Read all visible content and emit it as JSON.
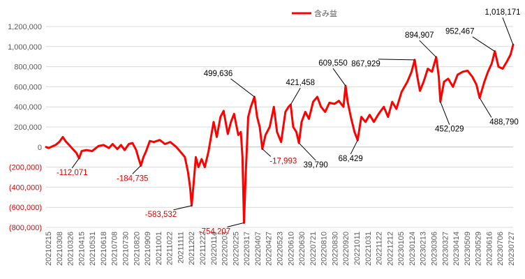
{
  "chart_data": {
    "type": "line",
    "legend": {
      "label": "含み益",
      "position": "top-center"
    },
    "colors": {
      "series": "#ff0000",
      "axis": "#bfbfbf",
      "grid": "#d9d9d9",
      "tick_text": "#595959",
      "negative_text": "#e00000",
      "annotation_text": "#000000",
      "leader": "#000000"
    },
    "y_axis": {
      "min": -800000,
      "max": 1200000,
      "step": 200000,
      "tick_labels": [
        "(800,000)",
        "(600,000)",
        "(400,000)",
        "(200,000)",
        "0",
        "200,000",
        "400,000",
        "600,000",
        "800,000",
        "1,000,000",
        "1,200,000"
      ]
    },
    "x_axis": {
      "start": "2021-02-15",
      "end": "2023-07-27",
      "tick_labels": [
        "20210215",
        "20210308",
        "20210326",
        "20210415",
        "20210531",
        "20210618",
        "20210708",
        "20210730",
        "20210820",
        "20210909",
        "20211001",
        "20211022",
        "20211111",
        "20211202",
        "20211222",
        "20220114",
        "20220203",
        "20220225",
        "20220317",
        "20220407",
        "20220427",
        "20220523",
        "20220610",
        "20220630",
        "20220721",
        "20220810",
        "20220830",
        "20220920",
        "20221011",
        "20221031",
        "20221122",
        "20221212",
        "20230105",
        "20230124",
        "20230213",
        "20230306",
        "20230327",
        "20230414",
        "20230509",
        "20230529",
        "20230616",
        "20230706",
        "20230727"
      ]
    },
    "series": [
      {
        "name": "含み益",
        "points": [
          [
            "2021-02-15",
            0
          ],
          [
            "2021-02-20",
            -10000
          ],
          [
            "2021-02-26",
            5000
          ],
          [
            "2021-03-05",
            20000
          ],
          [
            "2021-03-12",
            50000
          ],
          [
            "2021-03-19",
            100000
          ],
          [
            "2021-03-24",
            60000
          ],
          [
            "2021-03-31",
            20000
          ],
          [
            "2021-04-07",
            -20000
          ],
          [
            "2021-04-14",
            -60000
          ],
          [
            "2021-04-19",
            -112071
          ],
          [
            "2021-04-24",
            -40000
          ],
          [
            "2021-05-03",
            -30000
          ],
          [
            "2021-05-14",
            -40000
          ],
          [
            "2021-05-26",
            10000
          ],
          [
            "2021-06-05",
            20000
          ],
          [
            "2021-06-15",
            -10000
          ],
          [
            "2021-06-22",
            30000
          ],
          [
            "2021-07-01",
            -20000
          ],
          [
            "2021-07-08",
            20000
          ],
          [
            "2021-07-15",
            -30000
          ],
          [
            "2021-07-23",
            30000
          ],
          [
            "2021-07-30",
            40000
          ],
          [
            "2021-08-06",
            -30000
          ],
          [
            "2021-08-11",
            -120000
          ],
          [
            "2021-08-15",
            -184735
          ],
          [
            "2021-08-20",
            -100000
          ],
          [
            "2021-08-25",
            -40000
          ],
          [
            "2021-09-01",
            60000
          ],
          [
            "2021-09-09",
            50000
          ],
          [
            "2021-09-20",
            70000
          ],
          [
            "2021-09-30",
            30000
          ],
          [
            "2021-10-10",
            50000
          ],
          [
            "2021-10-22",
            0
          ],
          [
            "2021-10-30",
            -50000
          ],
          [
            "2021-11-07",
            -100000
          ],
          [
            "2021-11-13",
            -250000
          ],
          [
            "2021-11-17",
            -400000
          ],
          [
            "2021-11-20",
            -583532
          ],
          [
            "2021-11-24",
            -350000
          ],
          [
            "2021-11-28",
            -100000
          ],
          [
            "2021-12-03",
            -200000
          ],
          [
            "2021-12-09",
            -120000
          ],
          [
            "2021-12-15",
            -200000
          ],
          [
            "2021-12-22",
            -50000
          ],
          [
            "2022-01-01",
            250000
          ],
          [
            "2022-01-07",
            100000
          ],
          [
            "2022-01-14",
            300000
          ],
          [
            "2022-01-20",
            360000
          ],
          [
            "2022-01-28",
            130000
          ],
          [
            "2022-02-03",
            250000
          ],
          [
            "2022-02-09",
            330000
          ],
          [
            "2022-02-17",
            120000
          ],
          [
            "2022-02-22",
            150000
          ],
          [
            "2022-02-25",
            -100000
          ],
          [
            "2022-02-28",
            -754207
          ],
          [
            "2022-03-03",
            -300000
          ],
          [
            "2022-03-08",
            300000
          ],
          [
            "2022-03-13",
            400000
          ],
          [
            "2022-03-20",
            499636
          ],
          [
            "2022-03-25",
            300000
          ],
          [
            "2022-03-30",
            200000
          ],
          [
            "2022-04-04",
            -17993
          ],
          [
            "2022-04-10",
            120000
          ],
          [
            "2022-04-18",
            200000
          ],
          [
            "2022-04-26",
            400000
          ],
          [
            "2022-05-02",
            150000
          ],
          [
            "2022-05-10",
            50000
          ],
          [
            "2022-05-18",
            350000
          ],
          [
            "2022-05-24",
            400000
          ],
          [
            "2022-05-28",
            421458
          ],
          [
            "2022-06-02",
            200000
          ],
          [
            "2022-06-08",
            150000
          ],
          [
            "2022-06-13",
            39790
          ],
          [
            "2022-06-18",
            250000
          ],
          [
            "2022-06-25",
            350000
          ],
          [
            "2022-07-02",
            280000
          ],
          [
            "2022-07-10",
            450000
          ],
          [
            "2022-07-18",
            500000
          ],
          [
            "2022-07-25",
            400000
          ],
          [
            "2022-08-02",
            350000
          ],
          [
            "2022-08-10",
            440000
          ],
          [
            "2022-08-20",
            430000
          ],
          [
            "2022-08-28",
            460000
          ],
          [
            "2022-09-06",
            400000
          ],
          [
            "2022-09-10",
            609550
          ],
          [
            "2022-09-14",
            450000
          ],
          [
            "2022-09-20",
            300000
          ],
          [
            "2022-09-27",
            150000
          ],
          [
            "2022-10-03",
            68429
          ],
          [
            "2022-10-10",
            300000
          ],
          [
            "2022-10-18",
            250000
          ],
          [
            "2022-10-26",
            320000
          ],
          [
            "2022-11-03",
            250000
          ],
          [
            "2022-11-12",
            330000
          ],
          [
            "2022-11-22",
            400000
          ],
          [
            "2022-11-30",
            300000
          ],
          [
            "2022-12-08",
            450000
          ],
          [
            "2022-12-16",
            380000
          ],
          [
            "2022-12-26",
            550000
          ],
          [
            "2023-01-06",
            650000
          ],
          [
            "2023-01-14",
            750000
          ],
          [
            "2023-01-20",
            867929
          ],
          [
            "2023-01-25",
            700000
          ],
          [
            "2023-01-30",
            560000
          ],
          [
            "2023-02-06",
            650000
          ],
          [
            "2023-02-14",
            780000
          ],
          [
            "2023-02-22",
            750000
          ],
          [
            "2023-03-02",
            894907
          ],
          [
            "2023-03-07",
            700000
          ],
          [
            "2023-03-10",
            452029
          ],
          [
            "2023-03-17",
            650000
          ],
          [
            "2023-03-25",
            680000
          ],
          [
            "2023-04-03",
            600000
          ],
          [
            "2023-04-12",
            720000
          ],
          [
            "2023-04-22",
            750000
          ],
          [
            "2023-05-01",
            760000
          ],
          [
            "2023-05-10",
            700000
          ],
          [
            "2023-05-18",
            620000
          ],
          [
            "2023-05-24",
            488790
          ],
          [
            "2023-06-02",
            650000
          ],
          [
            "2023-06-09",
            750000
          ],
          [
            "2023-06-16",
            830000
          ],
          [
            "2023-06-22",
            952467
          ],
          [
            "2023-06-29",
            800000
          ],
          [
            "2023-07-07",
            780000
          ],
          [
            "2023-07-15",
            850000
          ],
          [
            "2023-07-22",
            920000
          ],
          [
            "2023-07-27",
            1018171
          ]
        ]
      }
    ],
    "annotations": [
      {
        "date": "2021-04-19",
        "value": -112071,
        "label": "-112,071",
        "negative": true
      },
      {
        "date": "2021-08-15",
        "value": -184735,
        "label": "-184,735",
        "negative": true
      },
      {
        "date": "2021-11-20",
        "value": -583532,
        "label": "-583,532",
        "negative": true
      },
      {
        "date": "2022-02-28",
        "value": -754207,
        "label": "-754,207",
        "negative": true
      },
      {
        "date": "2022-03-20",
        "value": 499636,
        "label": "499,636",
        "negative": false
      },
      {
        "date": "2022-04-04",
        "value": -17993,
        "label": "-17,993",
        "negative": true
      },
      {
        "date": "2022-05-28",
        "value": 421458,
        "label": "421,458",
        "negative": false
      },
      {
        "date": "2022-06-13",
        "value": 39790,
        "label": "39,790",
        "negative": false
      },
      {
        "date": "2022-09-10",
        "value": 609550,
        "label": "609,550",
        "negative": false
      },
      {
        "date": "2022-10-03",
        "value": 68429,
        "label": "68,429",
        "negative": false
      },
      {
        "date": "2023-01-20",
        "value": 867929,
        "label": "867,929",
        "negative": false
      },
      {
        "date": "2023-03-02",
        "value": 894907,
        "label": "894,907",
        "negative": false
      },
      {
        "date": "2023-03-10",
        "value": 452029,
        "label": "452,029",
        "negative": false
      },
      {
        "date": "2023-05-24",
        "value": 488790,
        "label": "488,790",
        "negative": false
      },
      {
        "date": "2023-06-22",
        "value": 952467,
        "label": "952,467",
        "negative": false
      },
      {
        "date": "2023-07-27",
        "value": 1018171,
        "label": "1,018,171",
        "negative": false
      }
    ]
  }
}
